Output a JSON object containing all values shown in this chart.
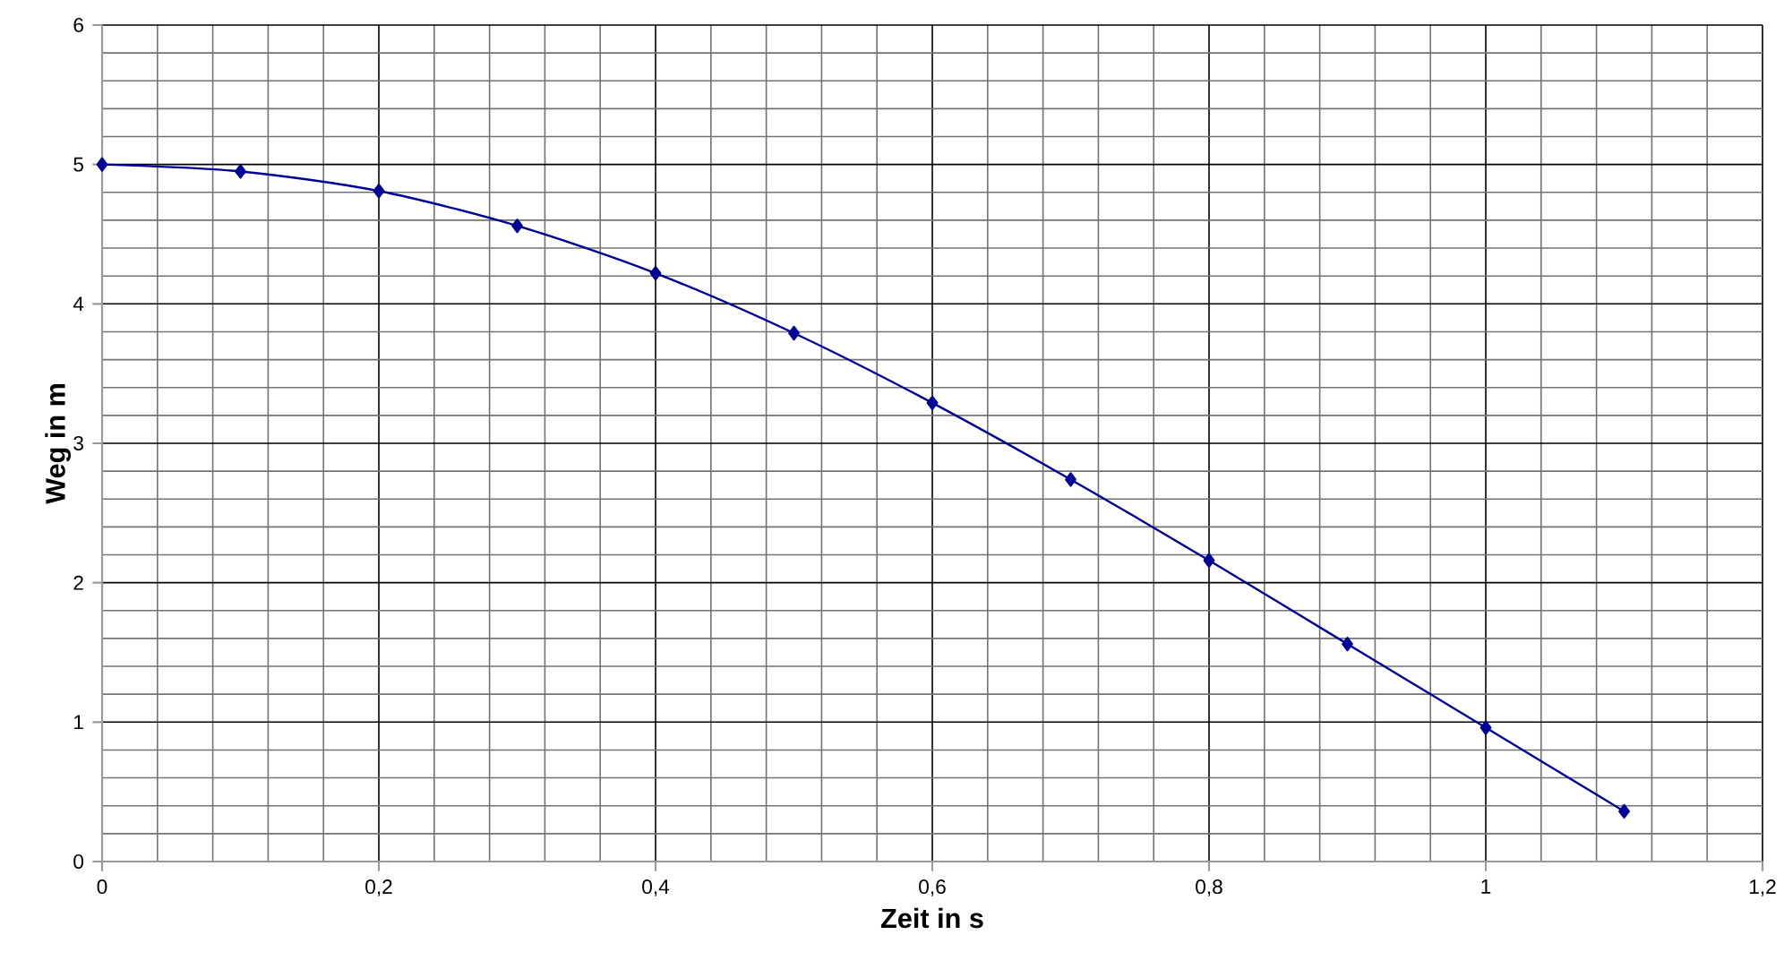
{
  "chart_data": {
    "type": "line",
    "xlabel": "Zeit in s",
    "ylabel": "Weg in m",
    "x": [
      0,
      0.1,
      0.2,
      0.3,
      0.4,
      0.5,
      0.6,
      0.7,
      0.8,
      0.9,
      1.0,
      1.1
    ],
    "series": [
      {
        "color": "#000099",
        "values": [
          5.0,
          4.95,
          4.81,
          4.56,
          4.22,
          3.79,
          3.29,
          2.74,
          2.16,
          1.56,
          0.96,
          0.36
        ]
      }
    ],
    "xlim": [
      0,
      1.2
    ],
    "xticks": [
      0,
      {
        "value": 0.2,
        "label": "0,2"
      },
      {
        "value": 0.4,
        "label": "0,4"
      },
      {
        "value": 0.6,
        "label": "0,6"
      },
      {
        "value": 0.8,
        "label": "0,8"
      },
      1,
      {
        "value": 1.2,
        "label": "1,2"
      }
    ],
    "ylim": [
      0,
      6
    ],
    "yticks": [
      0,
      1,
      2,
      3,
      4,
      5,
      6
    ],
    "grid": true,
    "marker": "diamond",
    "line_style": "solid"
  }
}
